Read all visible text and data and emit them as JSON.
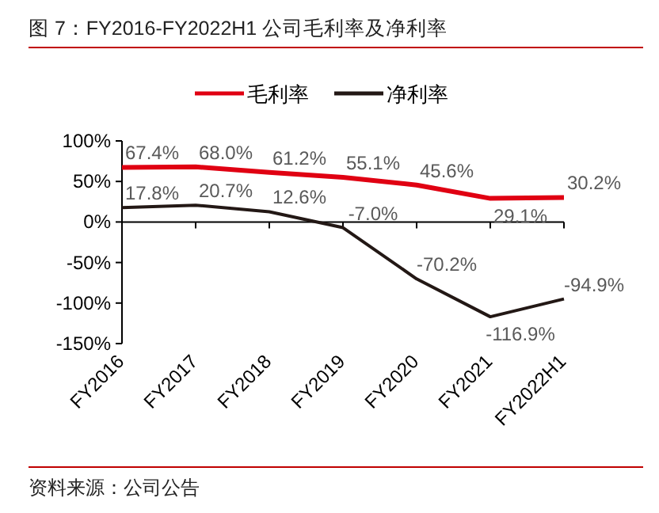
{
  "chart_data": {
    "type": "line",
    "title": "图 7：FY2016-FY2022H1 公司毛利率及净利率",
    "categories": [
      "FY2016",
      "FY2017",
      "FY2018",
      "FY2019",
      "FY2020",
      "FY2021",
      "FY2022H1"
    ],
    "series": [
      {
        "name": "毛利率",
        "color": "#e00012",
        "values": [
          67.4,
          68.0,
          61.2,
          55.1,
          45.6,
          29.1,
          30.2
        ]
      },
      {
        "name": "净利率",
        "color": "#231815",
        "values": [
          17.8,
          20.7,
          12.6,
          -7.0,
          -70.2,
          -116.9,
          -94.9
        ]
      }
    ],
    "ylim": [
      -150,
      100
    ],
    "yticks": [
      {
        "value": -150,
        "label": "-150%"
      },
      {
        "value": -100,
        "label": "-100%"
      },
      {
        "value": -50,
        "label": "-50%"
      },
      {
        "value": 0,
        "label": "0%"
      },
      {
        "value": 50,
        "label": "50%"
      },
      {
        "value": 100,
        "label": "100%"
      }
    ],
    "value_labels": [
      [
        "67.4%",
        "68.0%",
        "61.2%",
        "55.1%",
        "45.6%",
        "29.1%",
        "30.2%"
      ],
      [
        "17.8%",
        "20.7%",
        "12.6%",
        "-7.0%",
        "-70.2%",
        "-116.9%",
        "-94.9%"
      ]
    ],
    "legend": "top",
    "marker": "none",
    "annotations": [
      "资料来源：公司公告"
    ]
  }
}
